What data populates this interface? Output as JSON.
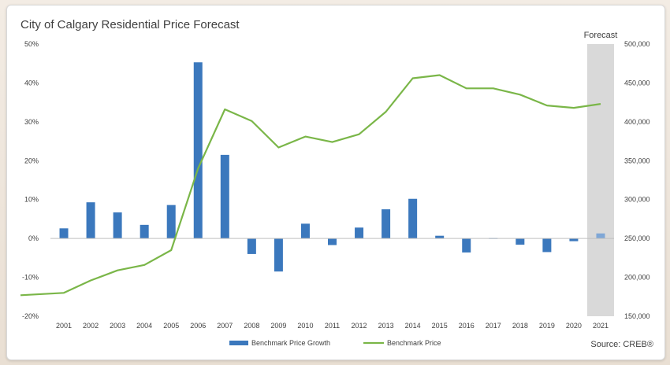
{
  "chart_data": {
    "type": "bar+line",
    "title": "City of Calgary Residential Price Forecast",
    "categories": [
      "2001",
      "2002",
      "2003",
      "2004",
      "2005",
      "2006",
      "2007",
      "2008",
      "2009",
      "2010",
      "2011",
      "2012",
      "2013",
      "2014",
      "2015",
      "2016",
      "2017",
      "2018",
      "2019",
      "2020",
      "2021"
    ],
    "series": [
      {
        "name": "Benchmark Price Growth",
        "type": "bar",
        "axis": "left",
        "color": "#3b78bd",
        "values": [
          2.6,
          9.3,
          6.7,
          3.5,
          8.6,
          45.3,
          21.5,
          -4.0,
          -8.5,
          3.8,
          -1.7,
          2.8,
          7.5,
          10.2,
          0.7,
          -3.6,
          0.1,
          -1.6,
          -3.5,
          -0.7,
          1.3
        ]
      },
      {
        "name": "Benchmark Price",
        "type": "line",
        "axis": "right",
        "color": "#7ab648",
        "values": [
          180000,
          196000,
          209000,
          216000,
          235000,
          340000,
          416000,
          401000,
          367000,
          381000,
          374000,
          384000,
          413000,
          456000,
          460000,
          443000,
          443000,
          435000,
          421000,
          418000,
          423000
        ]
      }
    ],
    "y_left": {
      "min": -20,
      "max": 50,
      "step": 10,
      "ticks": [
        "-20%",
        "-10%",
        "0%",
        "10%",
        "20%",
        "30%",
        "40%",
        "50%"
      ]
    },
    "y_right": {
      "min": 150000,
      "max": 500000,
      "step": 50000,
      "ticks": [
        "150,000",
        "200,000",
        "250,000",
        "300,000",
        "350,000",
        "400,000",
        "450,000",
        "500,000"
      ]
    },
    "line_start_value": 177000,
    "forecast": {
      "label": "Forecast",
      "category": "2021",
      "color": "#d9d9d9"
    },
    "forecast_bar_color": "#7fa7d6",
    "legend": {
      "placement": "bottom-center"
    },
    "source": "Source: CREB®",
    "grid": false
  }
}
